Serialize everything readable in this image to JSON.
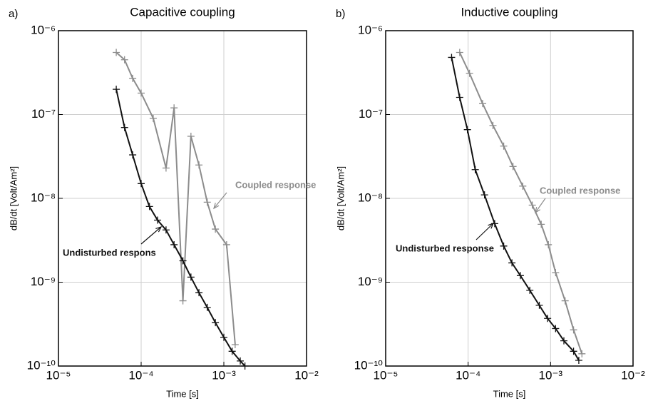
{
  "chart_data": [
    {
      "type": "line",
      "panel": "a)",
      "title": "Capacitive coupling",
      "xlabel": "Time [s]",
      "ylabel": "dB/dt [Volt/Am²]",
      "xscale": "log",
      "yscale": "log",
      "grid": true,
      "xlim": [
        1e-05,
        0.01
      ],
      "ylim": [
        1e-10,
        1e-06
      ],
      "xticks": [
        {
          "value": 1e-05,
          "label": "10⁻⁵"
        },
        {
          "value": 0.0001,
          "label": "10⁻⁴"
        },
        {
          "value": 0.001,
          "label": "10⁻³"
        },
        {
          "value": 0.01,
          "label": "10⁻²"
        }
      ],
      "yticks": [
        {
          "value": 1e-10,
          "label": "10⁻¹⁰"
        },
        {
          "value": 1e-09,
          "label": "10⁻⁹"
        },
        {
          "value": 1e-08,
          "label": "10⁻⁸"
        },
        {
          "value": 1e-07,
          "label": "10⁻⁷"
        },
        {
          "value": 1e-06,
          "label": "10⁻⁶"
        }
      ],
      "series": [
        {
          "name": "Coupled response",
          "color": "#8c8c8c",
          "x": [
            5e-05,
            6.3e-05,
            7.9e-05,
            0.0001,
            0.00014,
            0.0002,
            0.00025,
            0.00032,
            0.0004,
            0.0005,
            0.00063,
            0.00079,
            0.00108,
            0.00137
          ],
          "values": [
            5.5e-07,
            4.5e-07,
            2.7e-07,
            1.8e-07,
            9e-08,
            2.3e-08,
            1.2e-07,
            6e-10,
            5.5e-08,
            2.5e-08,
            9e-09,
            4.3e-09,
            2.8e-09,
            1.8e-10
          ]
        },
        {
          "name": "Undisturbed respons",
          "color": "#111111",
          "x": [
            5e-05,
            6.3e-05,
            7.9e-05,
            0.0001,
            0.000126,
            0.000158,
            0.0002,
            0.00025,
            0.00032,
            0.0004,
            0.0005,
            0.00063,
            0.00079,
            0.001,
            0.00126,
            0.00158,
            0.0018
          ],
          "values": [
            2e-07,
            7e-08,
            3.3e-08,
            1.5e-08,
            8e-09,
            5.5e-09,
            4.2e-09,
            2.8e-09,
            1.8e-09,
            1.15e-09,
            7.5e-10,
            5e-10,
            3.3e-10,
            2.2e-10,
            1.5e-10,
            1.15e-10,
            1e-10
          ]
        }
      ]
    },
    {
      "type": "line",
      "panel": "b)",
      "title": "Inductive coupling",
      "xlabel": "Time [s]",
      "ylabel": "dB/dt [Volt/Am²]",
      "xscale": "log",
      "yscale": "log",
      "grid": true,
      "xlim": [
        1e-05,
        0.01
      ],
      "ylim": [
        1e-10,
        1e-06
      ],
      "xticks": [
        {
          "value": 1e-05,
          "label": "10⁻⁵"
        },
        {
          "value": 0.0001,
          "label": "10⁻⁴"
        },
        {
          "value": 0.001,
          "label": "10⁻³"
        },
        {
          "value": 0.01,
          "label": "10⁻²"
        }
      ],
      "yticks": [
        {
          "value": 1e-10,
          "label": "10⁻¹⁰"
        },
        {
          "value": 1e-09,
          "label": "10⁻⁹"
        },
        {
          "value": 1e-08,
          "label": "10⁻⁸"
        },
        {
          "value": 1e-07,
          "label": "10⁻⁷"
        },
        {
          "value": 1e-06,
          "label": "10⁻⁶"
        }
      ],
      "series": [
        {
          "name": "Coupled response",
          "color": "#8c8c8c",
          "x": [
            7.9e-05,
            0.000104,
            0.00015,
            0.0002,
            0.00027,
            0.00035,
            0.00046,
            0.0006,
            0.00077,
            0.00094,
            0.00115,
            0.0015,
            0.0019,
            0.0024
          ],
          "values": [
            5.5e-07,
            3.1e-07,
            1.35e-07,
            7.4e-08,
            4.2e-08,
            2.4e-08,
            1.4e-08,
            8.3e-09,
            4.9e-09,
            2.8e-09,
            1.3e-09,
            6e-10,
            2.7e-10,
            1.4e-10
          ]
        },
        {
          "name": "Undisturbed response",
          "color": "#111111",
          "x": [
            6.3e-05,
            7.9e-05,
            9.8e-05,
            0.000122,
            0.000158,
            0.00021,
            0.00027,
            0.00034,
            0.00043,
            0.00056,
            0.00073,
            0.00092,
            0.00115,
            0.00145,
            0.0019,
            0.0022
          ],
          "values": [
            4.8e-07,
            1.6e-07,
            6.6e-08,
            2.2e-08,
            1.1e-08,
            5e-09,
            2.7e-09,
            1.7e-09,
            1.2e-09,
            8e-10,
            5.3e-10,
            3.7e-10,
            2.8e-10,
            2e-10,
            1.5e-10,
            1.17e-10
          ]
        }
      ]
    }
  ]
}
